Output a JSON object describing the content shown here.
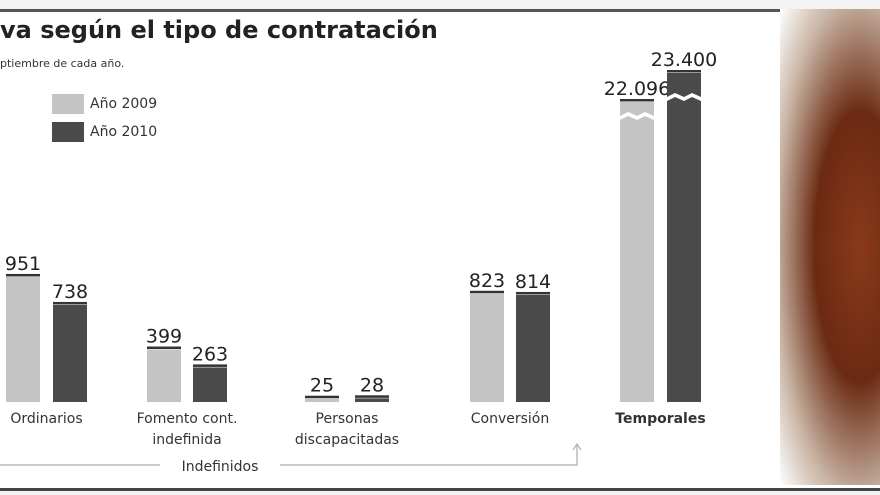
{
  "chart_data": {
    "type": "bar",
    "title": "va según el tipo de contratación",
    "subtitle": "ptiembre de cada año.",
    "legend": [
      {
        "name": "Año 2009",
        "color": "#c4c4c4"
      },
      {
        "name": "Año 2010",
        "color": "#4a4a4a"
      }
    ],
    "categories": [
      "Ordinarios",
      "Fomento cont. indefinida",
      "Personas discapacitadas",
      "Conversión",
      "Temporales"
    ],
    "category_lines": [
      [
        "Ordinarios"
      ],
      [
        "Fomento cont.",
        "indefinida"
      ],
      [
        "Personas",
        "discapacitadas"
      ],
      [
        "Conversión"
      ],
      [
        "Temporales"
      ]
    ],
    "series": [
      {
        "name": "Año 2009",
        "values": [
          951,
          399,
          25,
          823,
          22096
        ],
        "labels": [
          "951",
          "399",
          "25",
          "823",
          "22.096"
        ]
      },
      {
        "name": "Año 2010",
        "values": [
          738,
          263,
          28,
          814,
          23400
        ],
        "labels": [
          "738",
          "263",
          "28",
          "814",
          "23.400"
        ]
      }
    ],
    "broken_axis_category": "Temporales",
    "group_label": "Indefinidos"
  }
}
